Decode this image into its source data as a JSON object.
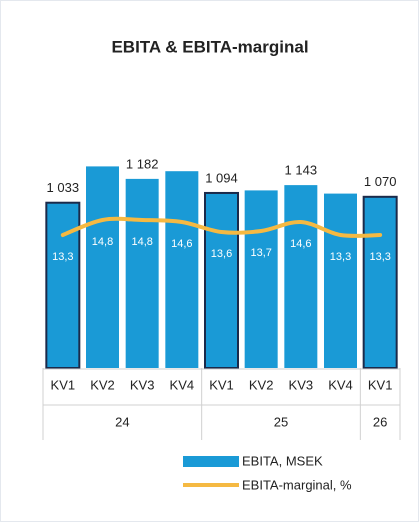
{
  "chart_data": {
    "type": "bar_line",
    "title": "EBITA & EBITA-marginal",
    "categories": [
      "KV1",
      "KV2",
      "KV3",
      "KV4",
      "KV1",
      "KV2",
      "KV3",
      "KV4",
      "KV1"
    ],
    "group_labels": [
      "24",
      "25",
      "26"
    ],
    "group_sizes": [
      4,
      4,
      1
    ],
    "ylim": [
      0,
      1400
    ],
    "y2lim": [
      0,
      22.4
    ],
    "series": [
      {
        "name": "EBITA, MSEK",
        "color": "#1a9ad6",
        "values": [
          1033,
          1260,
          1182,
          1230,
          1094,
          1110,
          1143,
          1090,
          1070
        ],
        "value_labels": [
          "1 033",
          null,
          "1 182",
          null,
          "1 094",
          null,
          "1 143",
          null,
          "1 070"
        ],
        "outline": [
          true,
          false,
          false,
          false,
          true,
          false,
          false,
          false,
          true
        ],
        "outline_color": "#1b2a4a"
      },
      {
        "name": "EBITA-marginal, %",
        "color": "#f5b942",
        "axis": "y2",
        "values": [
          13.3,
          14.8,
          14.8,
          14.6,
          13.6,
          13.7,
          14.6,
          13.3,
          13.3
        ],
        "value_labels": [
          "13,3",
          "14,8",
          "14,8",
          "14,6",
          "13,6",
          "13,7",
          "14,6",
          "13,3",
          "13,3"
        ]
      }
    ]
  }
}
